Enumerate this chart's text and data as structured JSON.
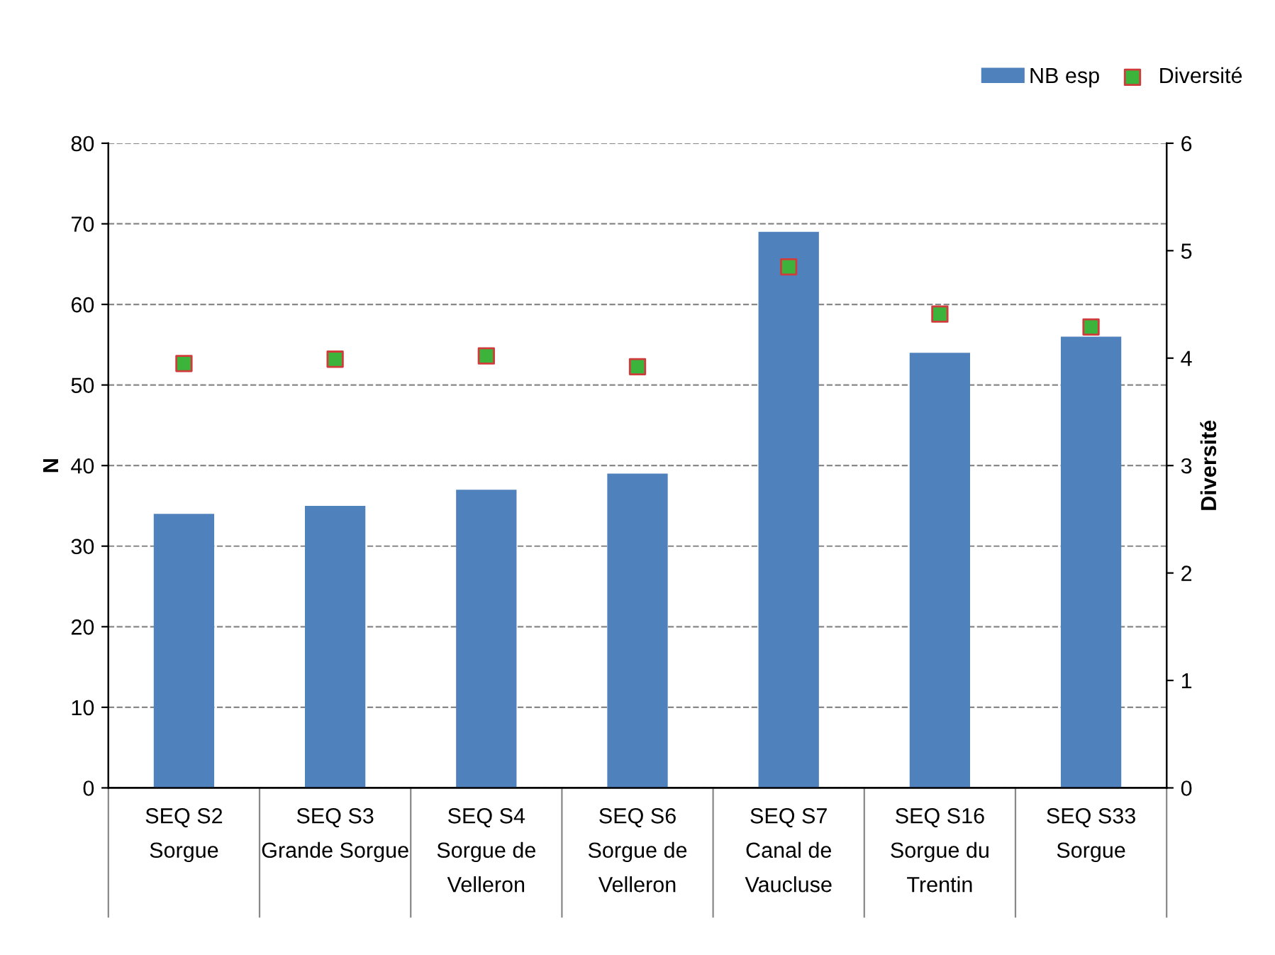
{
  "chart_data": {
    "type": "bar",
    "ylabel": "N",
    "y2label": "Diversité",
    "categories": [
      "SEQ S2\nSorgue",
      "SEQ S3\nGrande Sorgue",
      "SEQ S4\nSorgue de\nVelleron",
      "SEQ S6\nSorgue de\nVelleron",
      "SEQ S7\nCanal de\nVaucluse",
      "SEQ S16\nSorgue du\nTrentin",
      "SEQ S33\nSorgue"
    ],
    "series": [
      {
        "name": "NB esp",
        "color": "#4f81bd",
        "values": [
          34,
          35,
          37,
          39,
          69,
          54,
          56
        ]
      },
      {
        "name": "Diversité",
        "type": "scatter",
        "axis": "y2",
        "color": "#3cb43c",
        "marker": "square",
        "values": [
          3.95,
          3.99,
          4.02,
          3.92,
          4.85,
          4.41,
          4.29
        ]
      }
    ],
    "ylim": [
      0,
      80
    ],
    "yticks": [
      0,
      10,
      20,
      30,
      40,
      50,
      60,
      70,
      80
    ],
    "y2lim": [
      0,
      6
    ],
    "y2ticks": [
      0,
      1,
      2,
      3,
      4,
      5,
      6
    ],
    "grid": "y",
    "legend": "top right"
  }
}
